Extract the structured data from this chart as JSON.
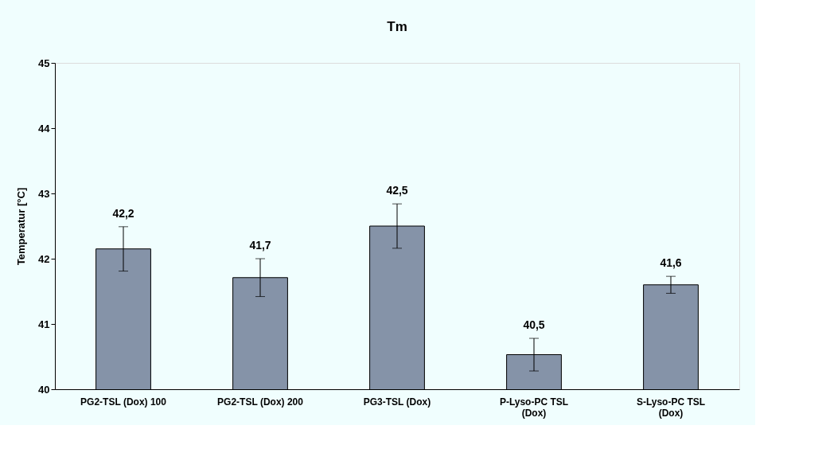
{
  "chart_data": {
    "type": "bar",
    "title": "Tm",
    "ylabel": "Temperatur [°C]",
    "categories": [
      "PG2-TSL (Dox) 100",
      "PG2-TSL (Dox) 200",
      "PG3-TSL (Dox)",
      "P-Lyso-PC TSL (Dox)",
      "S-Lyso-PC TSL (Dox)"
    ],
    "values": [
      42.15,
      41.71,
      42.5,
      40.53,
      41.6
    ],
    "errors": [
      0.34,
      0.29,
      0.34,
      0.25,
      0.13
    ],
    "value_labels": [
      "42,2",
      "41,7",
      "42,5",
      "40,5",
      "41,6"
    ],
    "color": "#8593a8",
    "ylim": [
      40,
      45
    ],
    "yticks": [
      40,
      41,
      42,
      43,
      44,
      45
    ],
    "grid": false
  }
}
